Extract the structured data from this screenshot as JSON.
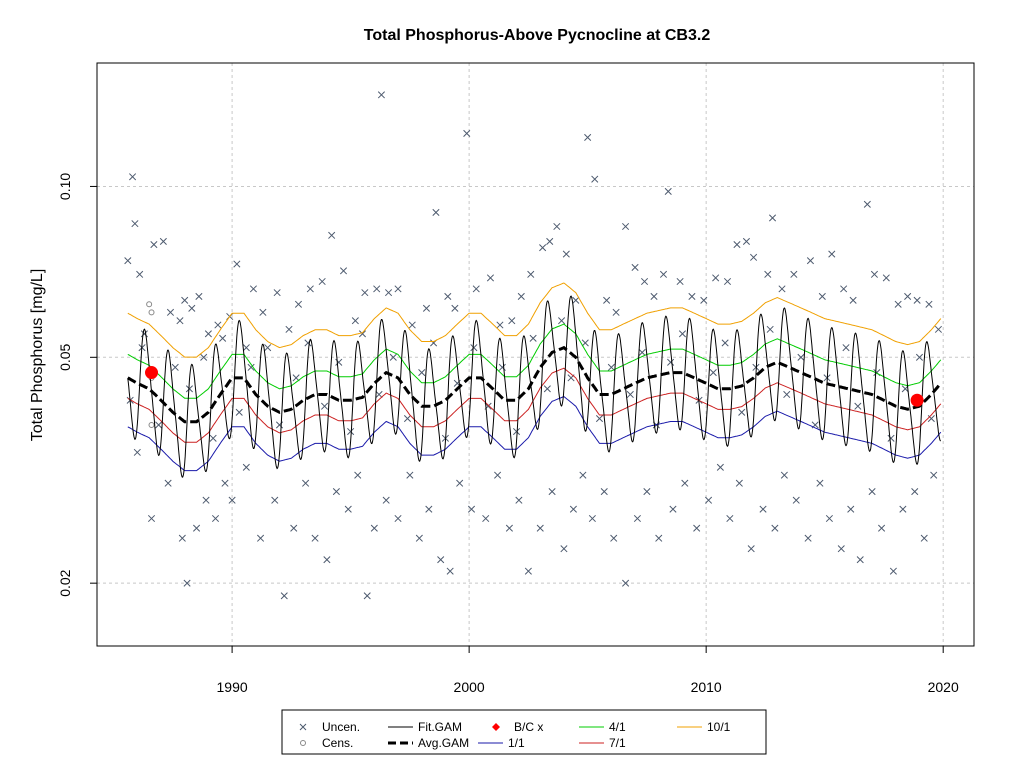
{
  "chart_data": {
    "type": "scatter",
    "title": "Total Phosphorus-Above Pycnocline at CB3.2",
    "xlabel": "",
    "ylabel": "Total Phosphorus [mg/L]",
    "y_scale": "log",
    "xlim": [
      1984.3,
      2021.3
    ],
    "ylim": [
      0.0155,
      0.165
    ],
    "x_ticks": [
      1990,
      2000,
      2010,
      2020
    ],
    "x_tick_labels": [
      "1990",
      "2000",
      "2010",
      "2020"
    ],
    "y_ticks": [
      0.02,
      0.05,
      0.1
    ],
    "y_tick_labels": [
      "0.02",
      "0.05",
      "0.10"
    ],
    "grid": true,
    "legend_position": "bottom",
    "legend": [
      {
        "key": "uncen",
        "label": "Uncen.",
        "symbol": "x",
        "color": "#4d5a6e"
      },
      {
        "key": "cens",
        "label": "Cens.",
        "symbol": "o",
        "color": "#888888"
      },
      {
        "key": "fit",
        "label": "Fit.GAM",
        "symbol": "line",
        "color": "#000000"
      },
      {
        "key": "avg",
        "label": "Avg.GAM",
        "symbol": "dashed",
        "color": "#000000"
      },
      {
        "key": "bc",
        "label": "B/C x",
        "symbol": "diamond",
        "color": "#ff0000"
      },
      {
        "key": "q1",
        "label": "1/1",
        "symbol": "line",
        "color": "#1a1aaa"
      },
      {
        "key": "q4",
        "label": "4/1",
        "symbol": "line",
        "color": "#00cc00"
      },
      {
        "key": "q7",
        "label": "7/1",
        "symbol": "line",
        "color": "#cc2222"
      },
      {
        "key": "q10",
        "label": "10/1",
        "symbol": "line",
        "color": "#f0a000"
      }
    ],
    "avg_gam": {
      "x": [
        1985.6,
        1986,
        1986.5,
        1987,
        1987.5,
        1988,
        1988.5,
        1989,
        1989.5,
        1990,
        1990.5,
        1991,
        1991.5,
        1992,
        1992.5,
        1993,
        1993.5,
        1994,
        1994.5,
        1995,
        1995.5,
        1996,
        1996.5,
        1997,
        1997.5,
        1998,
        1998.5,
        1999,
        1999.5,
        2000,
        2000.5,
        2001,
        2001.5,
        2002,
        2002.5,
        2003,
        2003.5,
        2004,
        2004.5,
        2005,
        2005.5,
        2006,
        2006.5,
        2007,
        2007.5,
        2008,
        2008.5,
        2009,
        2009.5,
        2010,
        2010.5,
        2011,
        2011.5,
        2012,
        2012.5,
        2013,
        2013.5,
        2014,
        2014.5,
        2015,
        2015.5,
        2016,
        2016.5,
        2017,
        2017.5,
        2018,
        2018.5,
        2019,
        2019.5,
        2019.9
      ],
      "y": [
        0.046,
        0.045,
        0.044,
        0.042,
        0.04,
        0.0385,
        0.0385,
        0.04,
        0.043,
        0.046,
        0.046,
        0.043,
        0.041,
        0.04,
        0.0405,
        0.042,
        0.043,
        0.043,
        0.042,
        0.042,
        0.0425,
        0.045,
        0.047,
        0.046,
        0.043,
        0.041,
        0.041,
        0.042,
        0.044,
        0.046,
        0.046,
        0.044,
        0.042,
        0.042,
        0.044,
        0.048,
        0.051,
        0.052,
        0.05,
        0.046,
        0.043,
        0.043,
        0.044,
        0.045,
        0.046,
        0.0465,
        0.047,
        0.047,
        0.046,
        0.045,
        0.044,
        0.044,
        0.0445,
        0.046,
        0.048,
        0.049,
        0.048,
        0.047,
        0.046,
        0.045,
        0.0445,
        0.044,
        0.0435,
        0.043,
        0.042,
        0.041,
        0.0405,
        0.041,
        0.043,
        0.045
      ]
    },
    "quantile_offsets": {
      "q1": 0.82,
      "q4": 1.1,
      "q7": 0.92,
      "q10": 1.3
    },
    "bc_points": [
      {
        "x": 1986.6,
        "y": 0.047
      },
      {
        "x": 2018.9,
        "y": 0.042
      }
    ],
    "censored_points": [
      {
        "x": 1986.5,
        "y": 0.062
      },
      {
        "x": 1986.6,
        "y": 0.06
      },
      {
        "x": 1986.6,
        "y": 0.046
      },
      {
        "x": 1986.6,
        "y": 0.038
      }
    ],
    "uncensored_points": [
      {
        "x": 1985.6,
        "y": 0.074
      },
      {
        "x": 1985.8,
        "y": 0.104
      },
      {
        "x": 1985.9,
        "y": 0.086
      },
      {
        "x": 1986.1,
        "y": 0.07
      },
      {
        "x": 1986.3,
        "y": 0.055
      },
      {
        "x": 1986.7,
        "y": 0.079
      },
      {
        "x": 1987.1,
        "y": 0.08
      },
      {
        "x": 1987.4,
        "y": 0.06
      },
      {
        "x": 1987.8,
        "y": 0.058
      },
      {
        "x": 1988.0,
        "y": 0.063
      },
      {
        "x": 1988.3,
        "y": 0.061
      },
      {
        "x": 1988.6,
        "y": 0.064
      },
      {
        "x": 1989.0,
        "y": 0.055
      },
      {
        "x": 1989.4,
        "y": 0.057
      },
      {
        "x": 1989.9,
        "y": 0.059
      },
      {
        "x": 1990.2,
        "y": 0.073
      },
      {
        "x": 1990.6,
        "y": 0.052
      },
      {
        "x": 1990.9,
        "y": 0.066
      },
      {
        "x": 1991.3,
        "y": 0.06
      },
      {
        "x": 1991.9,
        "y": 0.065
      },
      {
        "x": 1992.4,
        "y": 0.056
      },
      {
        "x": 1992.8,
        "y": 0.062
      },
      {
        "x": 1993.3,
        "y": 0.066
      },
      {
        "x": 1993.8,
        "y": 0.068
      },
      {
        "x": 1994.2,
        "y": 0.082
      },
      {
        "x": 1994.7,
        "y": 0.071
      },
      {
        "x": 1995.2,
        "y": 0.058
      },
      {
        "x": 1995.6,
        "y": 0.065
      },
      {
        "x": 1996.1,
        "y": 0.066
      },
      {
        "x": 1996.3,
        "y": 0.145
      },
      {
        "x": 1996.6,
        "y": 0.065
      },
      {
        "x": 1997.0,
        "y": 0.066
      },
      {
        "x": 1997.6,
        "y": 0.057
      },
      {
        "x": 1998.2,
        "y": 0.061
      },
      {
        "x": 1998.6,
        "y": 0.09
      },
      {
        "x": 1999.1,
        "y": 0.064
      },
      {
        "x": 1999.4,
        "y": 0.061
      },
      {
        "x": 1999.9,
        "y": 0.124
      },
      {
        "x": 2000.3,
        "y": 0.066
      },
      {
        "x": 2000.9,
        "y": 0.069
      },
      {
        "x": 2001.3,
        "y": 0.057
      },
      {
        "x": 2001.8,
        "y": 0.058
      },
      {
        "x": 2002.2,
        "y": 0.064
      },
      {
        "x": 2002.6,
        "y": 0.07
      },
      {
        "x": 2003.1,
        "y": 0.078
      },
      {
        "x": 2003.4,
        "y": 0.08
      },
      {
        "x": 2003.7,
        "y": 0.085
      },
      {
        "x": 2004.1,
        "y": 0.076
      },
      {
        "x": 2004.5,
        "y": 0.063
      },
      {
        "x": 2005.0,
        "y": 0.122
      },
      {
        "x": 2005.3,
        "y": 0.103
      },
      {
        "x": 2005.8,
        "y": 0.063
      },
      {
        "x": 2006.2,
        "y": 0.06
      },
      {
        "x": 2006.6,
        "y": 0.085
      },
      {
        "x": 2007.0,
        "y": 0.072
      },
      {
        "x": 2007.4,
        "y": 0.068
      },
      {
        "x": 2007.8,
        "y": 0.064
      },
      {
        "x": 2008.2,
        "y": 0.07
      },
      {
        "x": 2008.4,
        "y": 0.098
      },
      {
        "x": 2008.9,
        "y": 0.068
      },
      {
        "x": 2009.4,
        "y": 0.064
      },
      {
        "x": 2009.9,
        "y": 0.063
      },
      {
        "x": 2010.4,
        "y": 0.069
      },
      {
        "x": 2010.9,
        "y": 0.068
      },
      {
        "x": 2011.3,
        "y": 0.079
      },
      {
        "x": 2011.7,
        "y": 0.08
      },
      {
        "x": 2012.0,
        "y": 0.075
      },
      {
        "x": 2012.6,
        "y": 0.07
      },
      {
        "x": 2012.8,
        "y": 0.088
      },
      {
        "x": 2013.2,
        "y": 0.066
      },
      {
        "x": 2013.7,
        "y": 0.07
      },
      {
        "x": 2014.4,
        "y": 0.074
      },
      {
        "x": 2014.9,
        "y": 0.064
      },
      {
        "x": 2015.3,
        "y": 0.076
      },
      {
        "x": 2015.8,
        "y": 0.066
      },
      {
        "x": 2016.2,
        "y": 0.063
      },
      {
        "x": 2016.8,
        "y": 0.093
      },
      {
        "x": 2017.1,
        "y": 0.07
      },
      {
        "x": 2017.6,
        "y": 0.069
      },
      {
        "x": 2018.1,
        "y": 0.062
      },
      {
        "x": 2018.5,
        "y": 0.064
      },
      {
        "x": 2018.9,
        "y": 0.063
      },
      {
        "x": 2019.4,
        "y": 0.062
      },
      {
        "x": 1986.0,
        "y": 0.034
      },
      {
        "x": 1986.6,
        "y": 0.026
      },
      {
        "x": 1987.3,
        "y": 0.03
      },
      {
        "x": 1987.9,
        "y": 0.024
      },
      {
        "x": 1988.1,
        "y": 0.02
      },
      {
        "x": 1988.5,
        "y": 0.025
      },
      {
        "x": 1988.9,
        "y": 0.028
      },
      {
        "x": 1989.3,
        "y": 0.026
      },
      {
        "x": 1989.7,
        "y": 0.03
      },
      {
        "x": 1990.0,
        "y": 0.028
      },
      {
        "x": 1990.6,
        "y": 0.032
      },
      {
        "x": 1991.2,
        "y": 0.024
      },
      {
        "x": 1991.8,
        "y": 0.028
      },
      {
        "x": 1992.2,
        "y": 0.019
      },
      {
        "x": 1992.6,
        "y": 0.025
      },
      {
        "x": 1993.1,
        "y": 0.03
      },
      {
        "x": 1993.5,
        "y": 0.024
      },
      {
        "x": 1994.0,
        "y": 0.022
      },
      {
        "x": 1994.4,
        "y": 0.029
      },
      {
        "x": 1994.9,
        "y": 0.027
      },
      {
        "x": 1995.3,
        "y": 0.031
      },
      {
        "x": 1995.7,
        "y": 0.019
      },
      {
        "x": 1996.0,
        "y": 0.025
      },
      {
        "x": 1996.5,
        "y": 0.028
      },
      {
        "x": 1997.0,
        "y": 0.026
      },
      {
        "x": 1997.5,
        "y": 0.031
      },
      {
        "x": 1997.9,
        "y": 0.024
      },
      {
        "x": 1998.3,
        "y": 0.027
      },
      {
        "x": 1998.8,
        "y": 0.022
      },
      {
        "x": 1999.2,
        "y": 0.021
      },
      {
        "x": 1999.6,
        "y": 0.03
      },
      {
        "x": 2000.1,
        "y": 0.027
      },
      {
        "x": 2000.7,
        "y": 0.026
      },
      {
        "x": 2001.2,
        "y": 0.031
      },
      {
        "x": 2001.7,
        "y": 0.025
      },
      {
        "x": 2002.1,
        "y": 0.028
      },
      {
        "x": 2002.5,
        "y": 0.021
      },
      {
        "x": 2003.0,
        "y": 0.025
      },
      {
        "x": 2003.5,
        "y": 0.029
      },
      {
        "x": 2004.0,
        "y": 0.023
      },
      {
        "x": 2004.4,
        "y": 0.027
      },
      {
        "x": 2004.8,
        "y": 0.031
      },
      {
        "x": 2005.2,
        "y": 0.026
      },
      {
        "x": 2005.7,
        "y": 0.029
      },
      {
        "x": 2006.1,
        "y": 0.024
      },
      {
        "x": 2006.6,
        "y": 0.02
      },
      {
        "x": 2007.1,
        "y": 0.026
      },
      {
        "x": 2007.5,
        "y": 0.029
      },
      {
        "x": 2008.0,
        "y": 0.024
      },
      {
        "x": 2008.6,
        "y": 0.027
      },
      {
        "x": 2009.1,
        "y": 0.03
      },
      {
        "x": 2009.6,
        "y": 0.025
      },
      {
        "x": 2010.1,
        "y": 0.028
      },
      {
        "x": 2010.6,
        "y": 0.032
      },
      {
        "x": 2011.0,
        "y": 0.026
      },
      {
        "x": 2011.4,
        "y": 0.03
      },
      {
        "x": 2011.9,
        "y": 0.023
      },
      {
        "x": 2012.4,
        "y": 0.027
      },
      {
        "x": 2012.9,
        "y": 0.025
      },
      {
        "x": 2013.3,
        "y": 0.031
      },
      {
        "x": 2013.8,
        "y": 0.028
      },
      {
        "x": 2014.3,
        "y": 0.024
      },
      {
        "x": 2014.8,
        "y": 0.03
      },
      {
        "x": 2015.2,
        "y": 0.026
      },
      {
        "x": 2015.7,
        "y": 0.023
      },
      {
        "x": 2016.1,
        "y": 0.027
      },
      {
        "x": 2016.5,
        "y": 0.022
      },
      {
        "x": 2017.0,
        "y": 0.029
      },
      {
        "x": 2017.4,
        "y": 0.025
      },
      {
        "x": 2017.9,
        "y": 0.021
      },
      {
        "x": 2018.3,
        "y": 0.027
      },
      {
        "x": 2018.8,
        "y": 0.029
      },
      {
        "x": 2019.2,
        "y": 0.024
      },
      {
        "x": 2019.6,
        "y": 0.031
      },
      {
        "x": 1985.7,
        "y": 0.042
      },
      {
        "x": 1986.2,
        "y": 0.052
      },
      {
        "x": 1986.9,
        "y": 0.038
      },
      {
        "x": 1987.6,
        "y": 0.048
      },
      {
        "x": 1988.2,
        "y": 0.044
      },
      {
        "x": 1988.8,
        "y": 0.05
      },
      {
        "x": 1989.2,
        "y": 0.036
      },
      {
        "x": 1989.6,
        "y": 0.054
      },
      {
        "x": 1990.3,
        "y": 0.04
      },
      {
        "x": 1990.8,
        "y": 0.048
      },
      {
        "x": 1991.5,
        "y": 0.052
      },
      {
        "x": 1992.0,
        "y": 0.038
      },
      {
        "x": 1992.7,
        "y": 0.046
      },
      {
        "x": 1993.2,
        "y": 0.053
      },
      {
        "x": 1993.9,
        "y": 0.041
      },
      {
        "x": 1994.5,
        "y": 0.049
      },
      {
        "x": 1995.0,
        "y": 0.037
      },
      {
        "x": 1995.5,
        "y": 0.055
      },
      {
        "x": 1996.2,
        "y": 0.043
      },
      {
        "x": 1996.8,
        "y": 0.05
      },
      {
        "x": 1997.4,
        "y": 0.039
      },
      {
        "x": 1998.0,
        "y": 0.047
      },
      {
        "x": 1998.5,
        "y": 0.053
      },
      {
        "x": 1999.0,
        "y": 0.036
      },
      {
        "x": 1999.5,
        "y": 0.045
      },
      {
        "x": 2000.2,
        "y": 0.052
      },
      {
        "x": 2000.8,
        "y": 0.041
      },
      {
        "x": 2001.4,
        "y": 0.048
      },
      {
        "x": 2002.0,
        "y": 0.037
      },
      {
        "x": 2002.7,
        "y": 0.054
      },
      {
        "x": 2003.3,
        "y": 0.044
      },
      {
        "x": 2003.9,
        "y": 0.058
      },
      {
        "x": 2004.3,
        "y": 0.046
      },
      {
        "x": 2004.9,
        "y": 0.053
      },
      {
        "x": 2005.5,
        "y": 0.039
      },
      {
        "x": 2006.0,
        "y": 0.048
      },
      {
        "x": 2006.8,
        "y": 0.043
      },
      {
        "x": 2007.3,
        "y": 0.051
      },
      {
        "x": 2007.9,
        "y": 0.038
      },
      {
        "x": 2008.5,
        "y": 0.049
      },
      {
        "x": 2009.0,
        "y": 0.055
      },
      {
        "x": 2009.7,
        "y": 0.042
      },
      {
        "x": 2010.3,
        "y": 0.047
      },
      {
        "x": 2010.8,
        "y": 0.053
      },
      {
        "x": 2011.5,
        "y": 0.04
      },
      {
        "x": 2012.1,
        "y": 0.048
      },
      {
        "x": 2012.7,
        "y": 0.056
      },
      {
        "x": 2013.4,
        "y": 0.043
      },
      {
        "x": 2014.0,
        "y": 0.05
      },
      {
        "x": 2014.6,
        "y": 0.038
      },
      {
        "x": 2015.1,
        "y": 0.046
      },
      {
        "x": 2015.9,
        "y": 0.052
      },
      {
        "x": 2016.4,
        "y": 0.041
      },
      {
        "x": 2017.2,
        "y": 0.047
      },
      {
        "x": 2017.8,
        "y": 0.036
      },
      {
        "x": 2018.4,
        "y": 0.044
      },
      {
        "x": 2019.0,
        "y": 0.05
      },
      {
        "x": 2019.5,
        "y": 0.039
      },
      {
        "x": 2019.8,
        "y": 0.056
      }
    ]
  }
}
